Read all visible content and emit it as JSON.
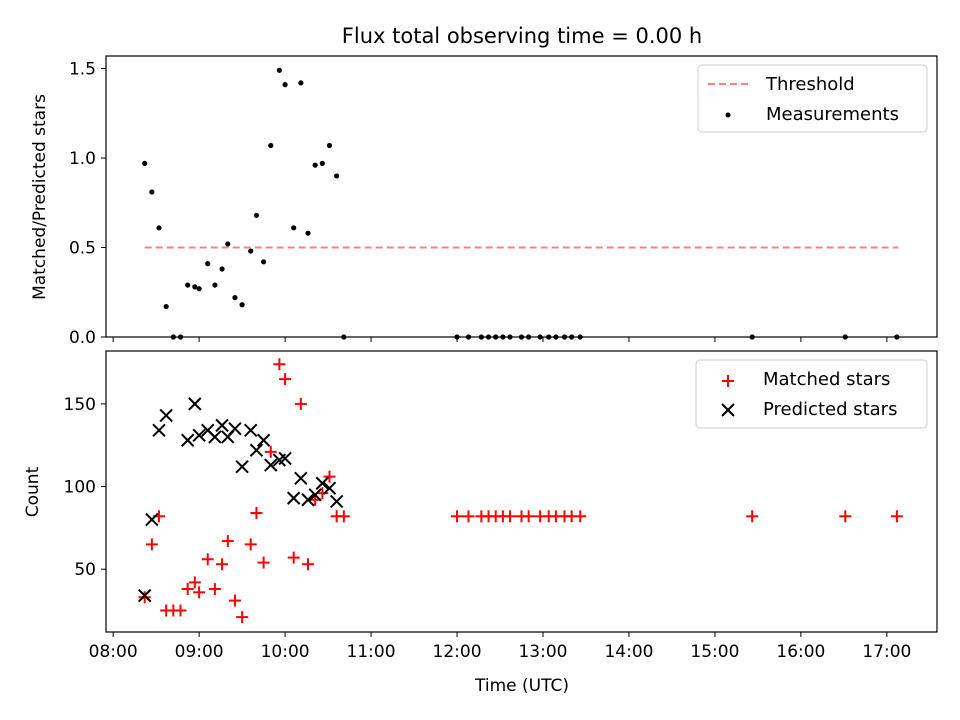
{
  "chart_data": [
    {
      "type": "scatter",
      "title": "Flux total observing time = 0.00 h",
      "xlabel": "",
      "ylabel": "Matched/Predicted stars",
      "xlim": [
        "07:55",
        "17:35"
      ],
      "ylim": [
        0,
        1.57
      ],
      "yticks": [
        0.0,
        0.5,
        1.0,
        1.5
      ],
      "ytick_labels": [
        "0.0",
        "0.5",
        "1.0",
        "1.5"
      ],
      "grid": false,
      "legend": {
        "placement": "top-right",
        "entries": [
          "Threshold",
          "Measurements"
        ]
      },
      "series": [
        {
          "name": "Threshold",
          "kind": "dashed-line",
          "color": "#ff7f7f",
          "points": [
            [
              "08:22",
              0.5
            ],
            [
              "17:08",
              0.5
            ]
          ]
        },
        {
          "name": "Measurements",
          "kind": "dots",
          "color": "#000000",
          "points": [
            [
              "08:22",
              0.97
            ],
            [
              "08:27",
              0.81
            ],
            [
              "08:32",
              0.61
            ],
            [
              "08:37",
              0.17
            ],
            [
              "08:42",
              0.0
            ],
            [
              "08:47",
              0.0
            ],
            [
              "08:52",
              0.29
            ],
            [
              "08:57",
              0.28
            ],
            [
              "09:00",
              0.27
            ],
            [
              "09:06",
              0.41
            ],
            [
              "09:11",
              0.29
            ],
            [
              "09:16",
              0.38
            ],
            [
              "09:20",
              0.52
            ],
            [
              "09:25",
              0.22
            ],
            [
              "09:30",
              0.18
            ],
            [
              "09:36",
              0.48
            ],
            [
              "09:40",
              0.68
            ],
            [
              "09:45",
              0.42
            ],
            [
              "09:50",
              1.07
            ],
            [
              "09:56",
              1.49
            ],
            [
              "10:00",
              1.41
            ],
            [
              "10:06",
              0.61
            ],
            [
              "10:11",
              1.42
            ],
            [
              "10:16",
              0.58
            ],
            [
              "10:21",
              0.96
            ],
            [
              "10:26",
              0.97
            ],
            [
              "10:31",
              1.07
            ],
            [
              "10:36",
              0.9
            ],
            [
              "10:41",
              0.0
            ],
            [
              "12:00",
              0.0
            ],
            [
              "12:08",
              0.0
            ],
            [
              "12:17",
              0.0
            ],
            [
              "12:22",
              0.0
            ],
            [
              "12:27",
              0.0
            ],
            [
              "12:32",
              0.0
            ],
            [
              "12:37",
              0.0
            ],
            [
              "12:45",
              0.0
            ],
            [
              "12:50",
              0.0
            ],
            [
              "12:58",
              0.0
            ],
            [
              "13:04",
              0.0
            ],
            [
              "13:09",
              0.0
            ],
            [
              "13:15",
              0.0
            ],
            [
              "13:20",
              0.0
            ],
            [
              "13:26",
              0.0
            ],
            [
              "15:26",
              0.0
            ],
            [
              "16:31",
              0.0
            ],
            [
              "17:07",
              0.0
            ]
          ]
        }
      ]
    },
    {
      "type": "scatter",
      "title": "",
      "xlabel": "Time (UTC)",
      "ylabel": "Count",
      "xlim": [
        "07:55",
        "17:35"
      ],
      "ylim": [
        12,
        182
      ],
      "yticks": [
        50,
        100,
        150
      ],
      "ytick_labels": [
        "50",
        "100",
        "150"
      ],
      "xticks": [
        "08:00",
        "09:00",
        "10:00",
        "11:00",
        "12:00",
        "13:00",
        "14:00",
        "15:00",
        "16:00",
        "17:00"
      ],
      "xtick_labels": [
        "08:00",
        "09:00",
        "10:00",
        "11:00",
        "12:00",
        "13:00",
        "14:00",
        "15:00",
        "16:00",
        "17:00"
      ],
      "grid": false,
      "legend": {
        "placement": "top-right",
        "entries": [
          "Matched stars",
          "Predicted stars"
        ]
      },
      "series": [
        {
          "name": "Matched stars",
          "marker": "plus",
          "color": "#ff0000",
          "points": [
            [
              "08:22",
              33
            ],
            [
              "08:27",
              65
            ],
            [
              "08:32",
              82
            ],
            [
              "08:37",
              25
            ],
            [
              "08:42",
              25
            ],
            [
              "08:47",
              25
            ],
            [
              "08:52",
              38
            ],
            [
              "08:57",
              42
            ],
            [
              "09:00",
              36
            ],
            [
              "09:06",
              56
            ],
            [
              "09:11",
              38
            ],
            [
              "09:16",
              53
            ],
            [
              "09:20",
              67
            ],
            [
              "09:25",
              31
            ],
            [
              "09:30",
              21
            ],
            [
              "09:36",
              65
            ],
            [
              "09:40",
              84
            ],
            [
              "09:45",
              54
            ],
            [
              "09:50",
              121
            ],
            [
              "09:56",
              174
            ],
            [
              "10:00",
              165
            ],
            [
              "10:06",
              57
            ],
            [
              "10:11",
              150
            ],
            [
              "10:16",
              53
            ],
            [
              "10:21",
              92
            ],
            [
              "10:26",
              96
            ],
            [
              "10:31",
              106
            ],
            [
              "10:36",
              82
            ],
            [
              "10:41",
              82
            ],
            [
              "12:00",
              82
            ],
            [
              "12:08",
              82
            ],
            [
              "12:17",
              82
            ],
            [
              "12:22",
              82
            ],
            [
              "12:27",
              82
            ],
            [
              "12:32",
              82
            ],
            [
              "12:37",
              82
            ],
            [
              "12:45",
              82
            ],
            [
              "12:50",
              82
            ],
            [
              "12:58",
              82
            ],
            [
              "13:04",
              82
            ],
            [
              "13:09",
              82
            ],
            [
              "13:15",
              82
            ],
            [
              "13:20",
              82
            ],
            [
              "13:26",
              82
            ],
            [
              "15:26",
              82
            ],
            [
              "16:31",
              82
            ],
            [
              "17:07",
              82
            ]
          ]
        },
        {
          "name": "Predicted stars",
          "marker": "x",
          "color": "#000000",
          "points": [
            [
              "08:22",
              34
            ],
            [
              "08:27",
              80
            ],
            [
              "08:32",
              134
            ],
            [
              "08:37",
              143
            ],
            [
              "08:52",
              128
            ],
            [
              "08:57",
              150
            ],
            [
              "09:00",
              131
            ],
            [
              "09:06",
              134
            ],
            [
              "09:11",
              130
            ],
            [
              "09:16",
              137
            ],
            [
              "09:20",
              130
            ],
            [
              "09:25",
              135
            ],
            [
              "09:30",
              112
            ],
            [
              "09:36",
              134
            ],
            [
              "09:40",
              122
            ],
            [
              "09:45",
              128
            ],
            [
              "09:50",
              113
            ],
            [
              "09:56",
              116
            ],
            [
              "10:00",
              117
            ],
            [
              "10:06",
              93
            ],
            [
              "10:11",
              105
            ],
            [
              "10:16",
              92
            ],
            [
              "10:21",
              95
            ],
            [
              "10:26",
              102
            ],
            [
              "10:31",
              99
            ],
            [
              "10:36",
              91
            ]
          ]
        }
      ]
    }
  ]
}
